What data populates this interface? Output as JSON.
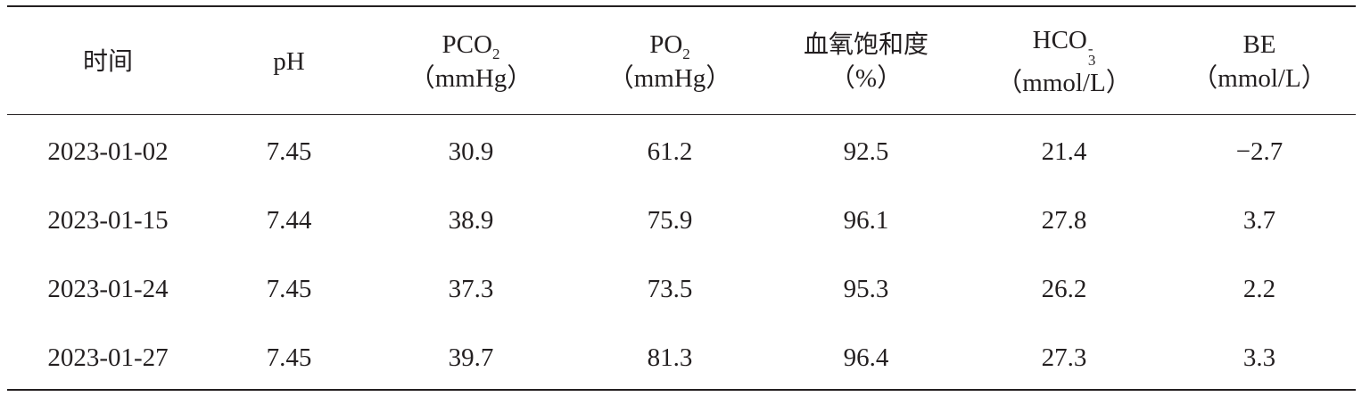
{
  "table": {
    "headers": [
      {
        "line1": "时间",
        "line2": ""
      },
      {
        "line1": "pH",
        "line2": ""
      },
      {
        "line1_base": "PCO",
        "line1_sub": "2",
        "line2": "（mmHg）"
      },
      {
        "line1_base": "PO",
        "line1_sub": "2",
        "line2": "（mmHg）"
      },
      {
        "line1": "血氧饱和度",
        "line2": "（%）"
      },
      {
        "line1_base": "HCO",
        "line1_sup": "-",
        "line1_sub": "3",
        "line2": "（mmol/L）"
      },
      {
        "line1": "BE",
        "line2": "（mmol/L）"
      }
    ],
    "rows": [
      [
        "2023-01-02",
        "7.45",
        "30.9",
        "61.2",
        "92.5",
        "21.4",
        "−2.7"
      ],
      [
        "2023-01-15",
        "7.44",
        "38.9",
        "75.9",
        "96.1",
        "27.8",
        "3.7"
      ],
      [
        "2023-01-24",
        "7.45",
        "37.3",
        "73.5",
        "95.3",
        "26.2",
        "2.2"
      ],
      [
        "2023-01-27",
        "7.45",
        "39.7",
        "81.3",
        "96.4",
        "27.3",
        "3.3"
      ]
    ]
  }
}
